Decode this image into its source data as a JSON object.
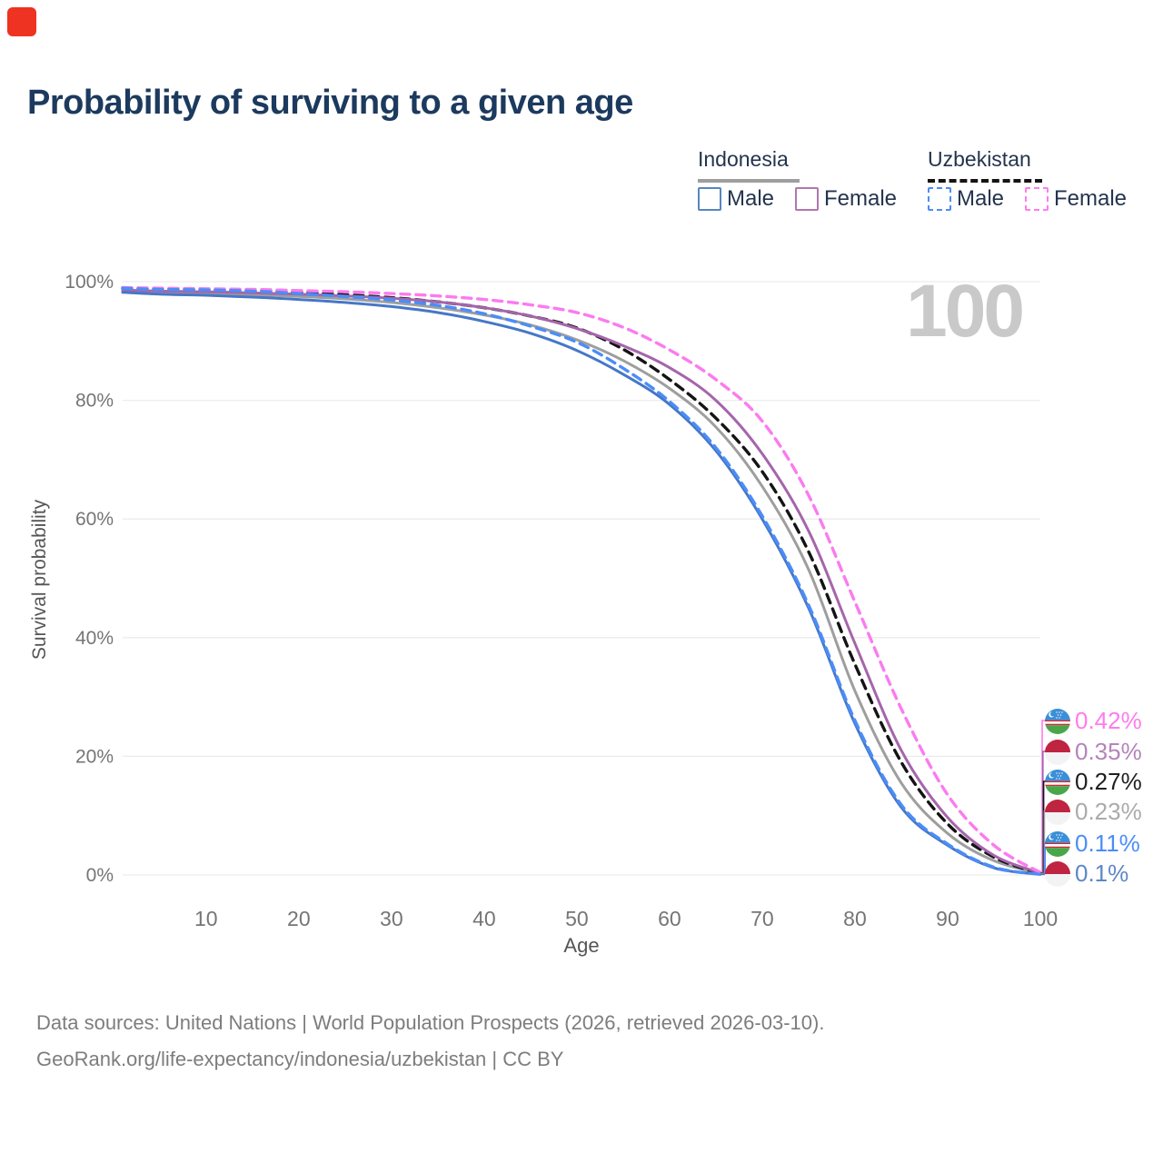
{
  "page": {
    "title": "Probability of surviving to a given age",
    "watermark_age": "100",
    "footer_line1": "Data sources: United Nations | World Population Prospects (2026, retrieved 2026-03-10).",
    "footer_line2": "GeoRank.org/life-expectancy/indonesia/uzbekistan | CC BY",
    "marker_color": "#ee3322"
  },
  "legend": {
    "groups": [
      {
        "country": "Indonesia",
        "sample_color": "#9e9e9e",
        "sample_dashed": false,
        "items": [
          {
            "label": "Male",
            "color": "#5586c0",
            "dashed": false
          },
          {
            "label": "Female",
            "color": "#b077ad",
            "dashed": false
          }
        ]
      },
      {
        "country": "Uzbekistan",
        "sample_color": "#141414",
        "sample_dashed": true,
        "items": [
          {
            "label": "Male",
            "color": "#4b8df8",
            "dashed": true
          },
          {
            "label": "Female",
            "color": "#ff7bf0",
            "dashed": true
          }
        ]
      }
    ]
  },
  "chart_data": {
    "type": "line",
    "title": "Probability of surviving to a given age",
    "xlabel": "Age",
    "ylabel": "Survival probability",
    "xlim": [
      1,
      100
    ],
    "ylim": [
      0,
      100
    ],
    "grid": "horizontal-only",
    "x_ticks": [
      10,
      20,
      30,
      40,
      50,
      60,
      70,
      80,
      90,
      100
    ],
    "y_ticks_percent": [
      0,
      20,
      40,
      60,
      80,
      100
    ],
    "ages": [
      1,
      5,
      10,
      15,
      20,
      25,
      30,
      35,
      40,
      45,
      50,
      55,
      60,
      65,
      70,
      75,
      80,
      85,
      90,
      95,
      100
    ],
    "series": [
      {
        "name": "Indonesia",
        "country": "id",
        "sex": "both",
        "color": "#9e9e9e",
        "dashed": false,
        "end_label": "0.23%",
        "end_label_color": "#ababab",
        "values": [
          98.4,
          98.2,
          98.0,
          97.8,
          97.5,
          97.1,
          96.5,
          95.6,
          94.4,
          92.7,
          90.2,
          86.7,
          82.0,
          75.5,
          65.5,
          51.5,
          31.0,
          15.5,
          7.0,
          2.4,
          0.23
        ]
      },
      {
        "name": "Uzbekistan",
        "country": "uz",
        "sex": "both",
        "color": "#141414",
        "dashed": true,
        "end_label": "0.27%",
        "end_label_color": "#1f1f1f",
        "values": [
          98.9,
          98.8,
          98.7,
          98.5,
          98.2,
          97.8,
          97.3,
          96.6,
          95.6,
          94.2,
          92.2,
          88.6,
          83.5,
          77.0,
          68.0,
          54.5,
          35.5,
          19.0,
          8.6,
          3.0,
          0.27
        ]
      },
      {
        "name": "Indonesia Female",
        "country": "id",
        "sex": "female",
        "color": "#a565ab",
        "dashed": false,
        "end_label": "0.35%",
        "end_label_color": "#b583bb",
        "values": [
          98.6,
          98.4,
          98.3,
          98.1,
          97.9,
          97.6,
          97.2,
          96.6,
          95.6,
          94.2,
          92.1,
          89.2,
          85.5,
          80.0,
          71.0,
          58.0,
          39.0,
          21.0,
          9.7,
          3.3,
          0.35
        ]
      },
      {
        "name": "Uzbekistan Female",
        "country": "uz",
        "sex": "female",
        "color": "#fb7bef",
        "dashed": true,
        "end_label": "0.42%",
        "end_label_color": "#ff7bf0",
        "values": [
          99.0,
          98.9,
          98.8,
          98.7,
          98.5,
          98.3,
          98.0,
          97.6,
          97.0,
          96.1,
          94.8,
          92.3,
          88.5,
          83.5,
          76.5,
          64.0,
          46.0,
          28.0,
          13.5,
          5.0,
          0.42
        ]
      },
      {
        "name": "Indonesia Male",
        "country": "id",
        "sex": "male",
        "color": "#4577c8",
        "dashed": false,
        "end_label": "0.1%",
        "end_label_color": "#5f87c5",
        "values": [
          98.2,
          97.9,
          97.7,
          97.4,
          97.0,
          96.5,
          95.8,
          94.8,
          93.3,
          91.3,
          88.4,
          84.4,
          79.3,
          71.5,
          60.0,
          45.0,
          25.5,
          11.4,
          5.0,
          1.2,
          0.1
        ]
      },
      {
        "name": "Uzbekistan Male",
        "country": "uz",
        "sex": "male",
        "color": "#4b8df8",
        "dashed": true,
        "end_label": "0.11%",
        "end_label_color": "#4b8df8",
        "values": [
          98.9,
          98.7,
          98.6,
          98.4,
          98.0,
          97.5,
          96.9,
          96.0,
          94.6,
          92.5,
          89.8,
          85.4,
          79.8,
          72.0,
          60.5,
          45.5,
          26.0,
          11.8,
          5.2,
          1.3,
          0.11
        ]
      }
    ],
    "flag_colors": {
      "uz_blue": "#3a8fd8",
      "uz_red": "#cc2b33",
      "uz_white": "#ffffff",
      "uz_green": "#4aa64a",
      "id_red": "#bf2440",
      "id_white": "#f2f3f5"
    },
    "legend_position": "top-right"
  }
}
